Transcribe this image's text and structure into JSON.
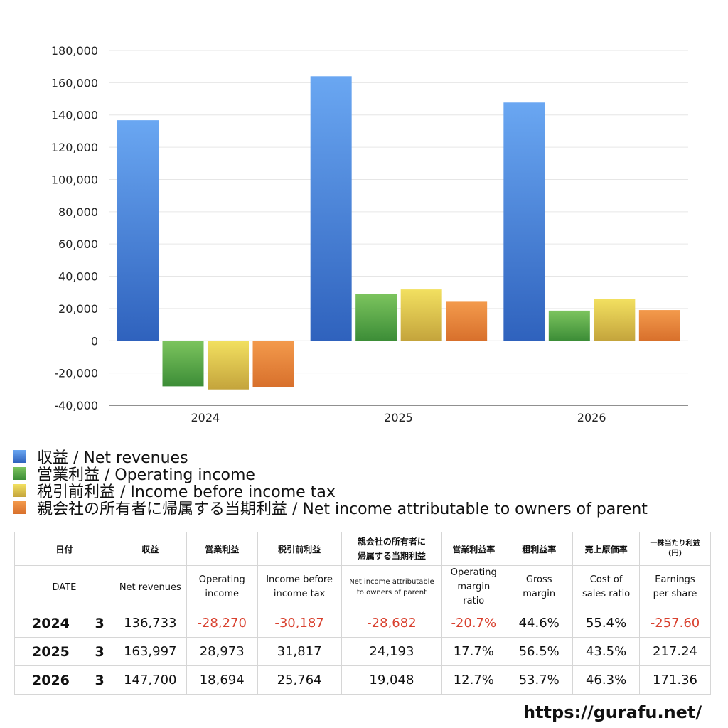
{
  "chart_data": {
    "type": "bar",
    "categories": [
      "2024",
      "2025",
      "2026"
    ],
    "series": [
      {
        "name": "収益 / Net revenues",
        "values": [
          136733,
          163997,
          147700
        ]
      },
      {
        "name": "営業利益 / Operating income",
        "values": [
          -28270,
          28973,
          18694
        ]
      },
      {
        "name": "税引前利益 / Income before income tax",
        "values": [
          -30187,
          31817,
          25764
        ]
      },
      {
        "name": "親会社の所有者に帰属する当期利益 / Net income attributable to owners of parent",
        "values": [
          -28682,
          24193,
          19048
        ]
      }
    ],
    "ylim": [
      -40000,
      180000
    ],
    "yticks": [
      180000,
      160000,
      140000,
      120000,
      100000,
      80000,
      60000,
      40000,
      20000,
      0,
      -20000,
      -40000
    ],
    "ytick_labels": [
      "180,000",
      "160,000",
      "140,000",
      "120,000",
      "100,000",
      "80,000",
      "60,000",
      "40,000",
      "20,000",
      "0",
      "-20,000",
      "-40,000"
    ],
    "grid": true,
    "legend_position": "bottom-left",
    "colors": {
      "blue_top": "#6aa7f2",
      "blue_bottom": "#2f62bd",
      "green_top": "#7cc45e",
      "green_bottom": "#3c8d37",
      "yellow_top": "#f2e060",
      "yellow_bottom": "#c4a43c",
      "orange_top": "#f39a4c",
      "orange_bottom": "#d8702c"
    }
  },
  "table": {
    "header_jp": [
      "日付",
      "収益",
      "営業利益",
      "税引前利益",
      "親会社の所有者に\n帰属する当期利益",
      "営業利益率",
      "粗利益率",
      "売上原価率",
      "一株当たり利益\n(円)"
    ],
    "header_en": [
      "DATE",
      "Net revenues",
      "Operating\nincome",
      "Income before\nincome tax",
      "Net income attributable\nto owners of parent",
      "Operating\nmargin\nratio",
      "Gross\nmargin",
      "Cost of\nsales ratio",
      "Earnings\nper share"
    ],
    "rows": [
      {
        "year": "2024",
        "month": "3",
        "cells": [
          "136,733",
          "-28,270",
          "-30,187",
          "-28,682",
          "-20.7%",
          "44.6%",
          "55.4%",
          "-257.60"
        ]
      },
      {
        "year": "2025",
        "month": "3",
        "cells": [
          "163,997",
          "28,973",
          "31,817",
          "24,193",
          "17.7%",
          "56.5%",
          "43.5%",
          "217.24"
        ]
      },
      {
        "year": "2026",
        "month": "3",
        "cells": [
          "147,700",
          "18,694",
          "25,764",
          "19,048",
          "12.7%",
          "53.7%",
          "46.3%",
          "171.36"
        ]
      }
    ]
  },
  "site_url": "https://gurafu.net/"
}
